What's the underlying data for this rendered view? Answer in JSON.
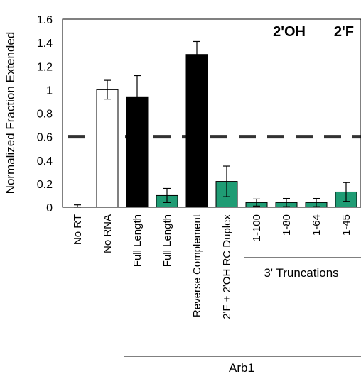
{
  "chart_data": {
    "type": "bar",
    "ylabel": "Normalized Fraction Extended",
    "ylim": [
      0,
      1.6
    ],
    "yticks": [
      0,
      0.2,
      0.4,
      0.6,
      0.8,
      1,
      1.2,
      1.4,
      1.6
    ],
    "ytick_labels": [
      "0",
      "0.2",
      "0.4",
      "0.6",
      "0.8",
      "1",
      "1.2",
      "1.4",
      "1.6"
    ],
    "categories": [
      "No RT",
      "No RNA",
      "Full Length",
      "Full Length",
      "Reverse Complement",
      "2'F + 2'OH RC Duplex",
      "1-100",
      "1-80",
      "1-64",
      "1-45"
    ],
    "values": [
      0.0,
      1.0,
      0.94,
      0.1,
      1.3,
      0.22,
      0.04,
      0.04,
      0.04,
      0.13
    ],
    "errors": [
      0.02,
      0.08,
      0.18,
      0.06,
      0.11,
      0.13,
      0.03,
      0.035,
      0.035,
      0.08
    ],
    "bar_styles": [
      "none",
      "open",
      "2'OH",
      "2'F",
      "2'OH",
      "2'F",
      "2'F",
      "2'F",
      "2'F",
      "2'F"
    ],
    "threshold": 0.6,
    "legend": {
      "items": [
        "2'OH",
        "2'F"
      ],
      "position": "top-right"
    },
    "groups": [
      {
        "label": "3' Truncations",
        "from": 6,
        "to": 9
      },
      {
        "label": "Arb1",
        "from": 2,
        "to": 9
      }
    ],
    "colors": {
      "2'OH": "#000000",
      "2'F": "#1f9c74",
      "open": "#ffffff",
      "outline": "#000000",
      "threshold": "#333333"
    }
  }
}
